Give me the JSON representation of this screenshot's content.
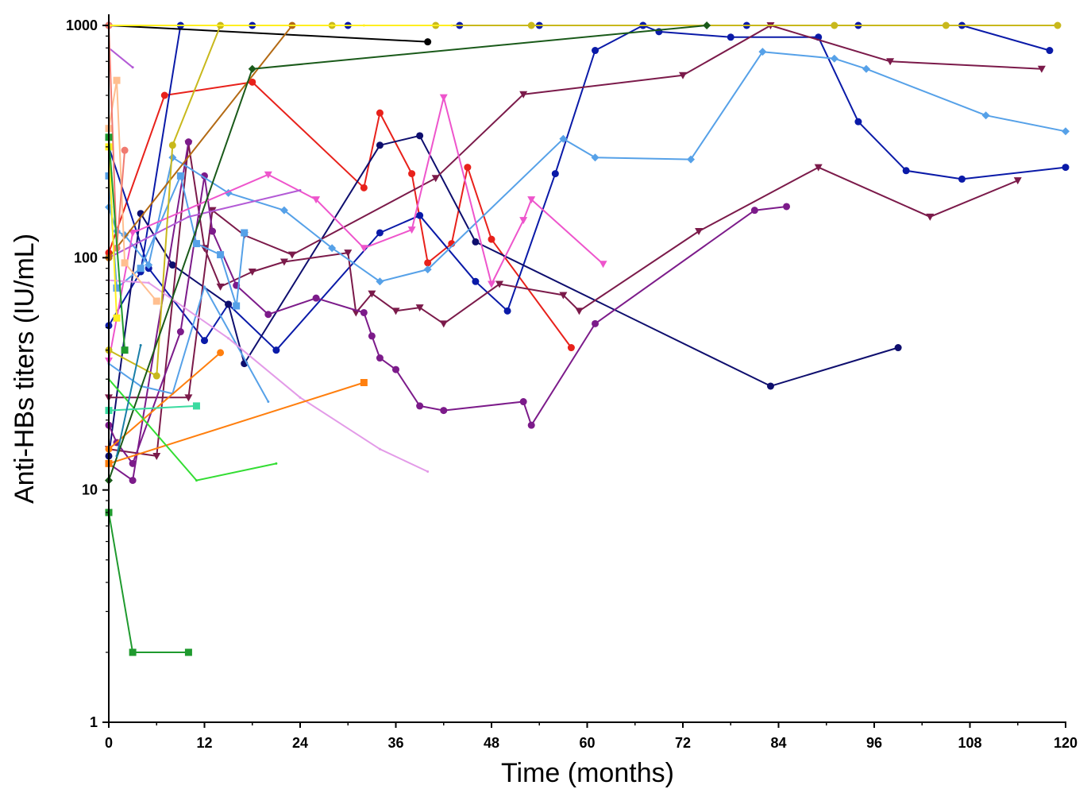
{
  "chart_data": {
    "type": "line",
    "title": "",
    "xlabel": "Time (months)",
    "ylabel": "Anti-HBs titers (IU/mL)",
    "xlim": [
      0,
      120
    ],
    "ylim": [
      1,
      1000
    ],
    "y_scale": "log",
    "grid": false,
    "legend": "none",
    "x_ticks": [
      {
        "v": 0,
        "label": "0"
      },
      {
        "v": 12,
        "label": "12"
      },
      {
        "v": 24,
        "label": "24"
      },
      {
        "v": 36,
        "label": "36"
      },
      {
        "v": 48,
        "label": "48"
      },
      {
        "v": 60,
        "label": "60"
      },
      {
        "v": 72,
        "label": "72"
      },
      {
        "v": 84,
        "label": "84"
      },
      {
        "v": 96,
        "label": "96"
      },
      {
        "v": 108,
        "label": "108"
      },
      {
        "v": 120,
        "label": "120"
      }
    ],
    "y_ticks": [
      {
        "v": 1,
        "label": "1"
      },
      {
        "v": 10,
        "label": "10"
      },
      {
        "v": 100,
        "label": "100"
      },
      {
        "v": 1000,
        "label": "1000"
      }
    ],
    "series": [
      {
        "color": "#e8211b",
        "marker": "circle",
        "points": [
          [
            0,
            105
          ],
          [
            7,
            500
          ],
          [
            18,
            570
          ],
          [
            32,
            200
          ],
          [
            34,
            420
          ],
          [
            38,
            230
          ],
          [
            40,
            95
          ],
          [
            43,
            115
          ],
          [
            45,
            245
          ],
          [
            48,
            120
          ],
          [
            58,
            41
          ]
        ]
      },
      {
        "color": "#0a1aa8",
        "marker": "circle",
        "points": [
          [
            0,
            51
          ],
          [
            4,
            87
          ],
          [
            9,
            1000
          ],
          [
            18,
            1000
          ],
          [
            30,
            1000
          ],
          [
            44,
            1000
          ],
          [
            54,
            1000
          ],
          [
            67,
            1000
          ],
          [
            80,
            1000
          ],
          [
            94,
            1000
          ],
          [
            107,
            1000
          ],
          [
            118,
            780
          ]
        ]
      },
      {
        "color": "#0a1aa8",
        "marker": "circle",
        "points": [
          [
            0,
            300
          ],
          [
            5,
            90
          ],
          [
            12,
            44
          ],
          [
            15,
            63
          ],
          [
            21,
            40
          ],
          [
            34,
            128
          ],
          [
            39,
            152
          ],
          [
            46,
            79
          ],
          [
            50,
            59
          ],
          [
            56,
            230
          ],
          [
            61,
            780
          ],
          [
            67,
            1000
          ],
          [
            69,
            940
          ],
          [
            78,
            890
          ],
          [
            89,
            890
          ],
          [
            94,
            385
          ],
          [
            100,
            237
          ],
          [
            107,
            218
          ],
          [
            120,
            245
          ]
        ]
      },
      {
        "color": "#0e0e6e",
        "marker": "circle",
        "points": [
          [
            0,
            14
          ],
          [
            4,
            155
          ],
          [
            8,
            93
          ],
          [
            15,
            63
          ],
          [
            17,
            35
          ],
          [
            34,
            305
          ],
          [
            39,
            335
          ],
          [
            46,
            117
          ],
          [
            83,
            28
          ],
          [
            99,
            41
          ]
        ]
      },
      {
        "color": "#000000",
        "marker": "circle",
        "points": [
          [
            0,
            1000
          ],
          [
            40,
            850
          ]
        ]
      },
      {
        "color": "#7b1a4a",
        "marker": "triangle",
        "points": [
          [
            0,
            25
          ],
          [
            10,
            25
          ],
          [
            13,
            160
          ],
          [
            17,
            125
          ],
          [
            23,
            103
          ],
          [
            41,
            220
          ],
          [
            52,
            505
          ],
          [
            72,
            610
          ],
          [
            83,
            1000
          ],
          [
            98,
            700
          ],
          [
            117,
            650
          ]
        ]
      },
      {
        "color": "#7b1a4a",
        "marker": "triangle",
        "points": [
          [
            0,
            15
          ],
          [
            6,
            14
          ],
          [
            10,
            310
          ],
          [
            12,
            110
          ],
          [
            14,
            75
          ],
          [
            18,
            87
          ],
          [
            22,
            96
          ],
          [
            30,
            105
          ],
          [
            31,
            58
          ],
          [
            33,
            70
          ],
          [
            36,
            59
          ],
          [
            39,
            61
          ],
          [
            42,
            52
          ],
          [
            49,
            77
          ],
          [
            57,
            69
          ],
          [
            59,
            59
          ],
          [
            74,
            130
          ],
          [
            89,
            245
          ],
          [
            103,
            150
          ],
          [
            114,
            215
          ]
        ]
      },
      {
        "color": "#7c1b8a",
        "marker": "circle",
        "points": [
          [
            0,
            19
          ],
          [
            1,
            16
          ],
          [
            3,
            13
          ],
          [
            9,
            48
          ],
          [
            12,
            225
          ],
          [
            13,
            130
          ],
          [
            16,
            76
          ],
          [
            20,
            57
          ],
          [
            26,
            67
          ],
          [
            32,
            58
          ],
          [
            33,
            46
          ],
          [
            34,
            37
          ],
          [
            36,
            33
          ],
          [
            39,
            23
          ],
          [
            42,
            22
          ],
          [
            52,
            24
          ],
          [
            53,
            19
          ],
          [
            61,
            52
          ],
          [
            81,
            160
          ],
          [
            85,
            166
          ]
        ]
      },
      {
        "color": "#7c1b8a",
        "marker": "circle",
        "points": [
          [
            0,
            13
          ],
          [
            3,
            11
          ],
          [
            10,
            315
          ]
        ]
      },
      {
        "color": "#56a1e8",
        "marker": "diamond",
        "points": [
          [
            0,
            165
          ],
          [
            1,
            130
          ],
          [
            2,
            125
          ],
          [
            5,
            93
          ],
          [
            8,
            270
          ],
          [
            15,
            190
          ],
          [
            22,
            160
          ],
          [
            28,
            110
          ],
          [
            34,
            79
          ],
          [
            40,
            89
          ],
          [
            57,
            325
          ],
          [
            61,
            270
          ],
          [
            73,
            265
          ],
          [
            82,
            770
          ],
          [
            91,
            720
          ],
          [
            95,
            650
          ],
          [
            110,
            410
          ],
          [
            120,
            350
          ]
        ]
      },
      {
        "color": "#56a1e8",
        "marker": "square",
        "points": [
          [
            0,
            225
          ],
          [
            1,
            74
          ],
          [
            4,
            90
          ],
          [
            9,
            225
          ],
          [
            11,
            115
          ],
          [
            14,
            103
          ],
          [
            16,
            62
          ],
          [
            17,
            128
          ]
        ]
      },
      {
        "color": "#56a1e8",
        "marker": "none",
        "points": [
          [
            0,
            35
          ],
          [
            4,
            28
          ],
          [
            8,
            26
          ],
          [
            12,
            75
          ],
          [
            20,
            24
          ]
        ]
      },
      {
        "color": "#ee55cc",
        "marker": "triangle",
        "points": [
          [
            0,
            36
          ],
          [
            3,
            128
          ],
          [
            20,
            228
          ],
          [
            26,
            178
          ],
          [
            32,
            110
          ],
          [
            38,
            132
          ],
          [
            42,
            490
          ],
          [
            48,
            77
          ],
          [
            52,
            145
          ],
          [
            53,
            178
          ],
          [
            62,
            94
          ]
        ]
      },
      {
        "color": "#e39be8",
        "marker": "none",
        "points": [
          [
            0,
            80
          ],
          [
            5,
            78
          ],
          [
            15,
            45
          ],
          [
            24,
            25
          ],
          [
            34,
            15
          ],
          [
            40,
            12
          ]
        ]
      },
      {
        "color": "#b35ad6",
        "marker": "none",
        "points": [
          [
            0,
            100
          ],
          [
            10,
            150
          ],
          [
            24,
            195
          ]
        ]
      },
      {
        "color": "#b35ad6",
        "marker": "none",
        "points": [
          [
            0,
            800
          ],
          [
            3,
            660
          ]
        ]
      },
      {
        "color": "#ff7f0e",
        "marker": "square",
        "points": [
          [
            0,
            13
          ],
          [
            32,
            29
          ]
        ]
      },
      {
        "color": "#ff7f0e",
        "marker": "circle",
        "points": [
          [
            0,
            15
          ],
          [
            14,
            39
          ]
        ]
      },
      {
        "color": "#b36a14",
        "marker": "circle",
        "points": [
          [
            0,
            100
          ],
          [
            23,
            1000
          ]
        ]
      },
      {
        "color": "#ffbf90",
        "marker": "square",
        "points": [
          [
            0,
            360
          ],
          [
            1,
            580
          ],
          [
            2,
            95
          ],
          [
            6,
            65
          ]
        ]
      },
      {
        "color": "#f07a70",
        "marker": "circle",
        "points": [
          [
            0,
            1000
          ],
          [
            1,
            110
          ],
          [
            2,
            290
          ]
        ]
      },
      {
        "color": "#c8b81c",
        "marker": "circle",
        "points": [
          [
            0,
            40
          ],
          [
            6,
            31
          ],
          [
            8,
            305
          ],
          [
            14,
            1000
          ],
          [
            28,
            1000
          ],
          [
            41,
            1000
          ],
          [
            53,
            1000
          ],
          [
            91,
            1000
          ],
          [
            105,
            1000
          ],
          [
            119,
            1000
          ]
        ]
      },
      {
        "color": "#ffef20",
        "marker": "none",
        "points": [
          [
            0,
            1000
          ],
          [
            28,
            1000
          ],
          [
            32,
            1000
          ],
          [
            43,
            1000
          ]
        ]
      },
      {
        "color": "#ffef20",
        "marker": "square",
        "points": [
          [
            0,
            300
          ],
          [
            1,
            55
          ]
        ]
      },
      {
        "color": "#1f9a2e",
        "marker": "square",
        "points": [
          [
            0,
            8
          ],
          [
            3,
            2
          ],
          [
            10,
            2
          ]
        ]
      },
      {
        "color": "#1f9a2e",
        "marker": "square",
        "points": [
          [
            0,
            330
          ],
          [
            2,
            40
          ]
        ]
      },
      {
        "color": "#33dd33",
        "marker": "none",
        "points": [
          [
            0,
            30
          ],
          [
            11,
            11
          ],
          [
            21,
            13
          ]
        ]
      },
      {
        "color": "#1a5a1a",
        "marker": "diamond",
        "points": [
          [
            0,
            11
          ],
          [
            18,
            650
          ],
          [
            75,
            1000
          ]
        ]
      },
      {
        "color": "#3adba0",
        "marker": "square",
        "points": [
          [
            0,
            22
          ],
          [
            11,
            23
          ]
        ]
      },
      {
        "color": "#1a7fa8",
        "marker": "none",
        "points": [
          [
            1,
            14
          ],
          [
            4,
            42
          ]
        ]
      }
    ]
  }
}
